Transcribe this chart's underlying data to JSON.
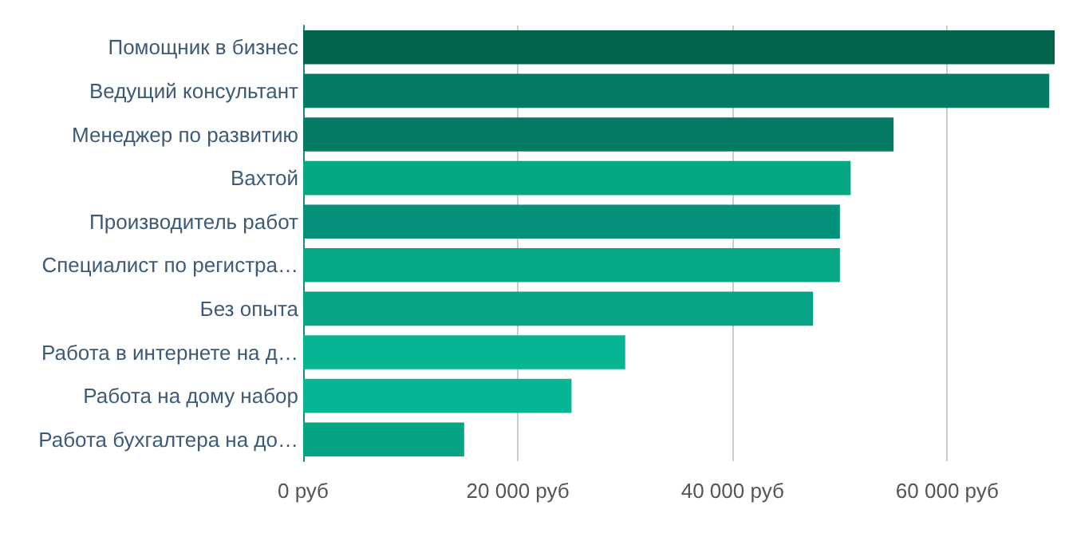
{
  "chart_data": {
    "type": "bar",
    "orientation": "horizontal",
    "categories": [
      "Помощник в бизнес",
      "Ведущий консультант",
      "Менеджер по развитию",
      "Вахтой",
      "Производитель работ",
      "Специалист по регистра…",
      "Без опыта",
      "Работа в интернете на д…",
      "Работа на дому набор",
      "Работа бухгалтера на до…"
    ],
    "values": [
      70000,
      69500,
      55000,
      51000,
      50000,
      50000,
      47500,
      30000,
      25000,
      15000
    ],
    "colors": [
      "#03644e",
      "#037a64",
      "#047b63",
      "#05a882",
      "#05927a",
      "#06a886",
      "#06a585",
      "#07b592",
      "#06b594",
      "#05a583"
    ],
    "xlim": [
      0,
      70000
    ],
    "xticks": [
      {
        "value": 0,
        "label": "0 руб"
      },
      {
        "value": 20000,
        "label": "20 000 руб"
      },
      {
        "value": 40000,
        "label": "40 000 руб"
      },
      {
        "value": 60000,
        "label": "60 000 руб"
      }
    ],
    "grid": "x"
  }
}
